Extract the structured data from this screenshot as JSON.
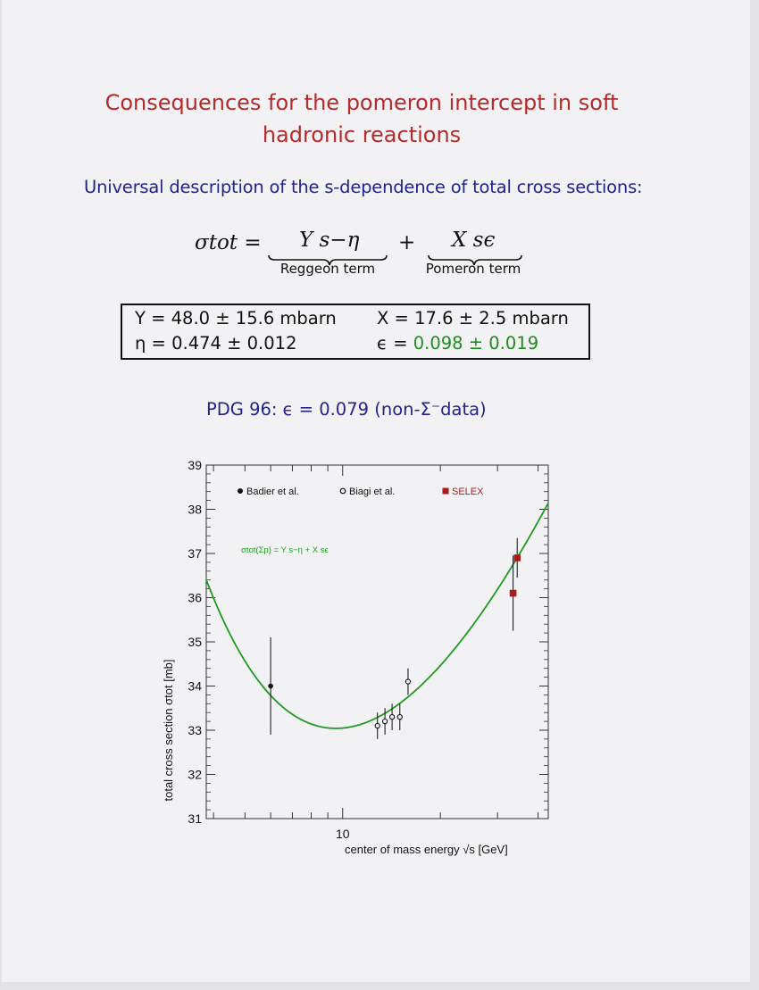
{
  "slide": {
    "title_line1": "Consequences for the pomeron intercept in soft",
    "title_line2": "hadronic reactions",
    "subtitle": "Universal description of the s-dependence of total cross sections:",
    "formula": {
      "lhs": "σtot =",
      "reggeon_expr": "Y s−η",
      "plus": "+",
      "pomeron_expr": "X sϵ",
      "reggeon_label": "Reggeon term",
      "pomeron_label": "Pomeron term"
    },
    "parameters": {
      "Y": "Y = 48.0 ± 15.6 mbarn",
      "X": "X = 17.6 ± 2.5 mbarn",
      "eta": "η = 0.474 ± 0.012",
      "epsilon_prefix": "ϵ = ",
      "epsilon_value": "0.098 ± 0.019"
    },
    "pdg": {
      "prefix": "PDG 96:",
      "value": "ϵ = 0.079 (non-Σ⁻data)"
    },
    "colors": {
      "title": "#b52a2a",
      "subtitle": "#22238c",
      "highlight": "#1e8c1e"
    }
  },
  "chart_data": {
    "type": "scatter",
    "xlabel": "center of mass energy √s [GeV]",
    "ylabel": "total cross section σtot [mb]",
    "x_scale": "log",
    "x_range": [
      3.8,
      43
    ],
    "ylim": [
      31,
      39
    ],
    "y_ticks": [
      31,
      32,
      33,
      34,
      35,
      36,
      37,
      38,
      39
    ],
    "x_tick_labels": [
      {
        "value": 10,
        "label": "10"
      }
    ],
    "grid": false,
    "legend_position": "top",
    "annotation": "σtot(Σp) = Y s−η + X sϵ",
    "fit_curve": {
      "name": "σtot(Σp) = Y s−η + X sϵ",
      "color": "#1e9a1e",
      "Y": 48.0,
      "X": 17.6,
      "eta": 0.474,
      "epsilon": 0.098
    },
    "series": [
      {
        "name": "Badier et al.",
        "marker": "filled-circle",
        "color": "#111111",
        "points": [
          {
            "x": 6.0,
            "y": 34.0,
            "err": 1.1
          }
        ]
      },
      {
        "name": "Biagi et al.",
        "marker": "open-circle",
        "color": "#111111",
        "points": [
          {
            "x": 12.8,
            "y": 33.1,
            "err": 0.3
          },
          {
            "x": 13.5,
            "y": 33.2,
            "err": 0.3
          },
          {
            "x": 14.2,
            "y": 33.3,
            "err": 0.3
          },
          {
            "x": 15.0,
            "y": 33.3,
            "err": 0.3
          },
          {
            "x": 15.9,
            "y": 34.1,
            "err": 0.3
          }
        ]
      },
      {
        "name": "SELEX",
        "marker": "filled-square",
        "color": "#a81c1c",
        "points": [
          {
            "x": 33.5,
            "y": 36.1,
            "err": 0.85
          },
          {
            "x": 34.5,
            "y": 36.9,
            "err": 0.45
          }
        ]
      }
    ]
  }
}
